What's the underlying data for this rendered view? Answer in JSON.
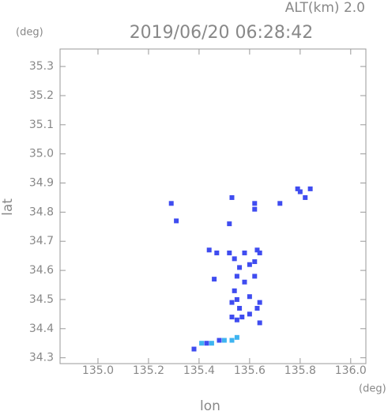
{
  "chart_data": {
    "type": "scatter",
    "title": "2019/06/20 06:28:42",
    "subtitle": "ALT(km) 2.0",
    "y_unit": "(deg)",
    "x_unit": "(deg)",
    "x_label": "lon",
    "y_label": "lat",
    "xlim": [
      134.85,
      136.06
    ],
    "ylim": [
      34.28,
      35.36
    ],
    "xticks": [
      {
        "value": 135,
        "label": "135.0"
      },
      135.2,
      135.4,
      135.6,
      135.8,
      {
        "value": 136,
        "label": "136.0"
      }
    ],
    "yticks": [
      34.3,
      34.4,
      34.5,
      34.6,
      34.7,
      34.8,
      34.9,
      {
        "value": 35,
        "label": "35.0"
      },
      35.1,
      35.2,
      35.3
    ],
    "series": [
      {
        "color": "#3f4cf0",
        "x": [
          135.29,
          135.31,
          135.53,
          135.52,
          135.62,
          135.62,
          135.72,
          135.79,
          135.8,
          135.84,
          135.82,
          135.44,
          135.47,
          135.52,
          135.54,
          135.58,
          135.63,
          135.64,
          135.62,
          135.6,
          135.56,
          135.55,
          135.58,
          135.62,
          135.46,
          135.54,
          135.55,
          135.53,
          135.56,
          135.6,
          135.64,
          135.63,
          135.57,
          135.55,
          135.53,
          135.6,
          135.64,
          135.38,
          135.43,
          135.48
        ],
        "values": [
          34.83,
          34.77,
          34.85,
          34.76,
          34.83,
          34.81,
          34.83,
          34.88,
          34.87,
          34.88,
          34.85,
          34.67,
          34.66,
          34.66,
          34.64,
          34.66,
          34.67,
          34.66,
          34.63,
          34.62,
          34.61,
          34.58,
          34.56,
          34.58,
          34.57,
          34.53,
          34.5,
          34.49,
          34.47,
          34.51,
          34.49,
          34.47,
          34.44,
          34.43,
          34.44,
          34.45,
          34.42,
          34.33,
          34.35,
          34.36
        ]
      },
      {
        "color": "#3fb4f0",
        "x": [
          135.41,
          135.45,
          135.5,
          135.53,
          135.55
        ],
        "values": [
          34.35,
          34.35,
          34.36,
          34.36,
          34.37
        ]
      }
    ]
  }
}
